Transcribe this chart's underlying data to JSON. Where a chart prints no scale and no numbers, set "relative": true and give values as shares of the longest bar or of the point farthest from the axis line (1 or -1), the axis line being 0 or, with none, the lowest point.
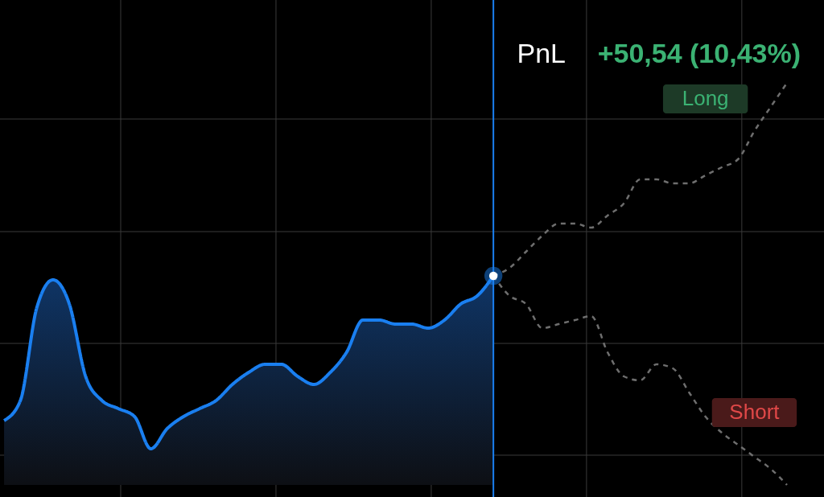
{
  "chart_data": {
    "type": "area",
    "relative": true,
    "grid": true,
    "categories": [
      null,
      null,
      null,
      null,
      null,
      null,
      null,
      null,
      null,
      null,
      null,
      null,
      null,
      null,
      null,
      null,
      null,
      null,
      null,
      null,
      null,
      null,
      null,
      null,
      null,
      null,
      null,
      null,
      null,
      null,
      null,
      null,
      null,
      null,
      null,
      null,
      null,
      null,
      null,
      null,
      null,
      null,
      null,
      null,
      null,
      null,
      null,
      null,
      null
    ],
    "series": [
      {
        "color": "#1a7ff0",
        "values": [
          0.16,
          0.21,
          0.44,
          0.51,
          0.45,
          0.27,
          0.21,
          0.19,
          0.17,
          0.09,
          0.14,
          0.17,
          0.19,
          0.21,
          0.25,
          0.28,
          0.3,
          0.3,
          0.27,
          0.25,
          0.28,
          0.33,
          0.41,
          0.41,
          0.4,
          0.4,
          0.39,
          0.41,
          0.45,
          0.47,
          0.52,
          null,
          null,
          null,
          null,
          null,
          null,
          null,
          null,
          null,
          null,
          null,
          null,
          null,
          null,
          null,
          null,
          null,
          null
        ]
      },
      {
        "type": "line",
        "name": "Long",
        "color": "#6e6e6e",
        "line_style": "dashed",
        "values": [
          null,
          null,
          null,
          null,
          null,
          null,
          null,
          null,
          null,
          null,
          null,
          null,
          null,
          null,
          null,
          null,
          null,
          null,
          null,
          null,
          null,
          null,
          null,
          null,
          null,
          null,
          null,
          null,
          null,
          null,
          0.52,
          0.54,
          0.58,
          0.62,
          0.65,
          0.65,
          0.64,
          0.67,
          0.7,
          0.76,
          0.76,
          0.75,
          0.75,
          0.77,
          0.79,
          0.81,
          0.88,
          0.94,
          1
        ]
      },
      {
        "type": "line",
        "name": "Short",
        "color": "#6e6e6e",
        "line_style": "dashed",
        "values": [
          null,
          null,
          null,
          null,
          null,
          null,
          null,
          null,
          null,
          null,
          null,
          null,
          null,
          null,
          null,
          null,
          null,
          null,
          null,
          null,
          null,
          null,
          null,
          null,
          null,
          null,
          null,
          null,
          null,
          null,
          0.52,
          0.47,
          0.45,
          0.39,
          0.4,
          0.41,
          0.42,
          0.33,
          0.27,
          0.26,
          0.3,
          0.29,
          0.23,
          0.17,
          0.13,
          0.1,
          0.07,
          0.04,
          0
        ]
      }
    ],
    "annotations": [
      "PnL",
      "+50,54 (10,43%)"
    ]
  }
}
